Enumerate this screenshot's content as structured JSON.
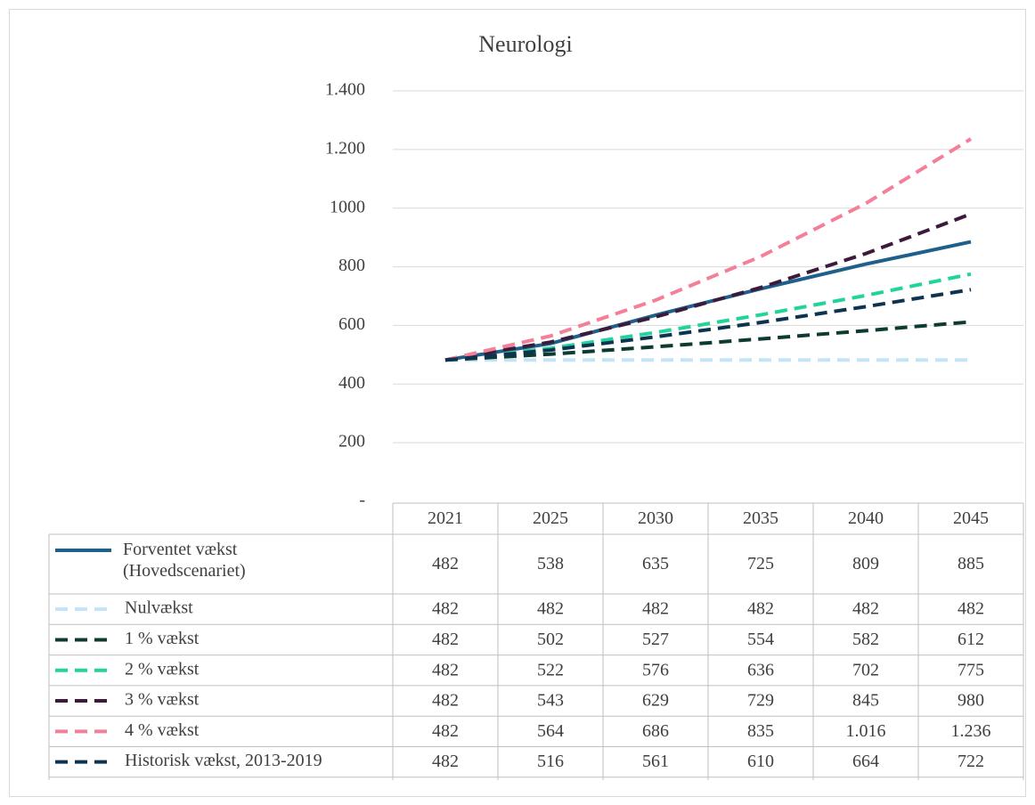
{
  "chart_data": {
    "type": "line",
    "title": "Neurologi",
    "categories": [
      "2021",
      "2025",
      "2030",
      "2035",
      "2040",
      "2045"
    ],
    "ylim": [
      0,
      1400
    ],
    "yticks": [
      {
        "value": 0,
        "label": "-"
      },
      200,
      400,
      600,
      800,
      1000,
      {
        "value": 1200,
        "label": "1.200"
      },
      {
        "value": 1400,
        "label": "1.400"
      }
    ],
    "grid": true,
    "data_table": true,
    "series": [
      {
        "name": "Forventet vækst (Hovedscenariet)",
        "color": "#1f5f8b",
        "dashed": false,
        "values": [
          482,
          538,
          635,
          725,
          809,
          885
        ]
      },
      {
        "name": "Nulvækst",
        "color": "#c5e3f6",
        "dashed": true,
        "values": [
          482,
          482,
          482,
          482,
          482,
          482
        ]
      },
      {
        "name": "1 % vækst",
        "color": "#0d3b32",
        "dashed": true,
        "values": [
          482,
          502,
          527,
          554,
          582,
          612
        ]
      },
      {
        "name": "2 % vækst",
        "color": "#22d49c",
        "dashed": true,
        "values": [
          482,
          522,
          576,
          636,
          702,
          775
        ]
      },
      {
        "name": "3 % vækst",
        "color": "#3b1a3b",
        "dashed": true,
        "values": [
          482,
          543,
          629,
          729,
          845,
          980
        ]
      },
      {
        "name": "4 % vækst",
        "color": "#f47f98",
        "dashed": true,
        "values": [
          482,
          564,
          686,
          835,
          1016,
          1236
        ],
        "value_labels": [
          "482",
          "564",
          "686",
          "835",
          "1.016",
          "1.236"
        ]
      },
      {
        "name": "Historisk vækst, 2013-2019",
        "color": "#0e3350",
        "dashed": true,
        "values": [
          482,
          516,
          561,
          610,
          664,
          722
        ]
      }
    ]
  }
}
